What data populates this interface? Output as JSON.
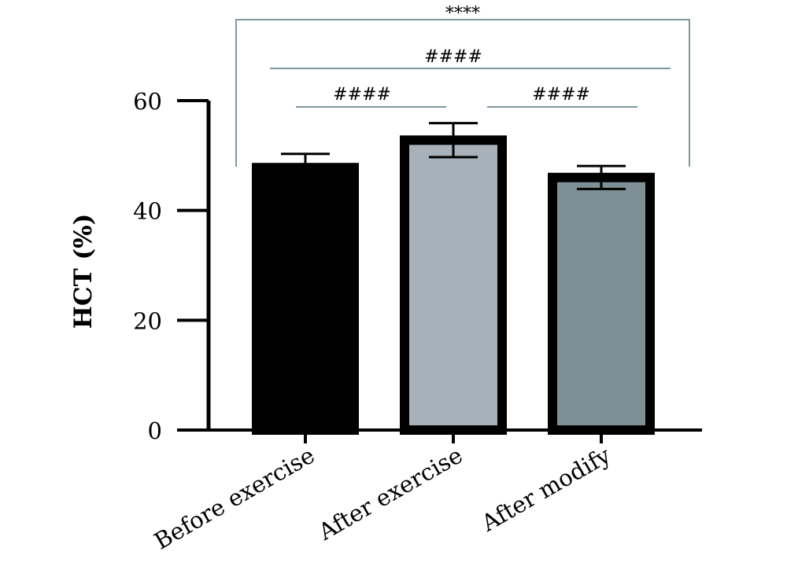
{
  "chart_data": {
    "type": "bar",
    "ylabel": "HCT (%)",
    "ylim": [
      0,
      60
    ],
    "yticks": [
      0,
      20,
      40,
      60
    ],
    "categories": [
      "Before exercise",
      "After exercise",
      "After modify"
    ],
    "values": [
      47.8,
      52.8,
      46.0
    ],
    "errors": [
      2.5,
      3.1,
      2.1
    ],
    "bar_colors": [
      "#000000",
      "#a7b1ba",
      "#7e9095"
    ],
    "annotations": [
      {
        "label": "****",
        "from": 0,
        "to": 2,
        "style": "bracket"
      },
      {
        "label": "####",
        "from": 0,
        "to": 2,
        "style": "line"
      },
      {
        "label": "####",
        "from": 0,
        "to": 1,
        "style": "line"
      },
      {
        "label": "####",
        "from": 1,
        "to": 2,
        "style": "line"
      }
    ]
  }
}
